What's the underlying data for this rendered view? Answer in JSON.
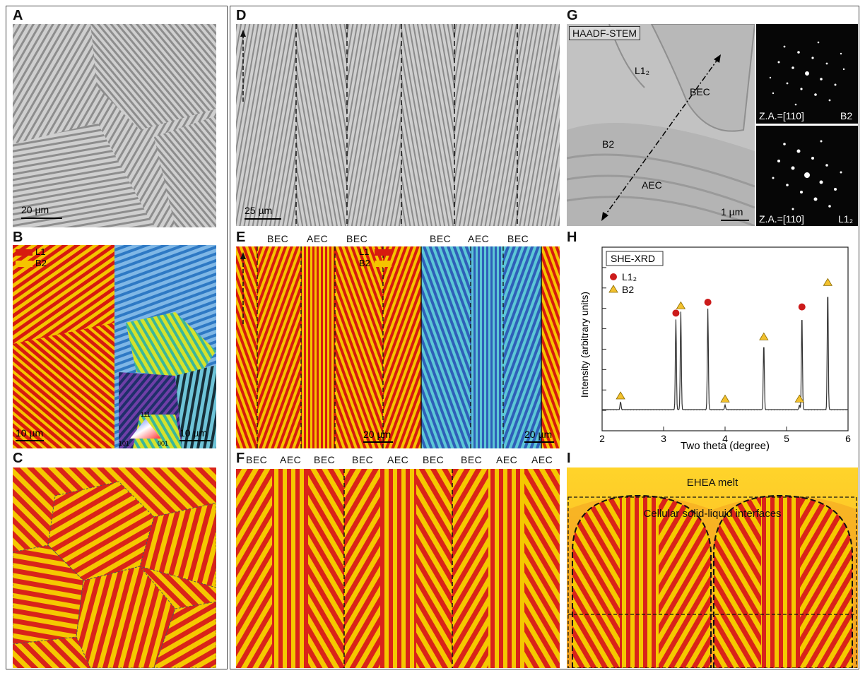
{
  "panels": {
    "A": {
      "label": "A",
      "scale": "20 µm"
    },
    "B": {
      "label": "B",
      "legend": [
        "L1",
        "B2"
      ],
      "scale_left": "10 µm",
      "scale_right": "10 µm",
      "ipf": [
        "111",
        "101",
        "001"
      ]
    },
    "C": {
      "label": "C"
    },
    "D": {
      "label": "D",
      "scale": "25 µm"
    },
    "E": {
      "label": "E",
      "top": [
        "BEC",
        "AEC",
        "BEC",
        "BEC",
        "AEC",
        "BEC"
      ],
      "legend": [
        "L1",
        "B2"
      ],
      "scale_left": "20 µm",
      "scale_right": "20 µm"
    },
    "F": {
      "label": "F",
      "top": [
        "BEC",
        "AEC",
        "BEC",
        "BEC",
        "AEC",
        "BEC",
        "BEC",
        "AEC",
        "AEC"
      ]
    },
    "G": {
      "label": "G",
      "mode": "HAADF-STEM",
      "regions": [
        "L1₂",
        "BEC",
        "B2",
        "AEC"
      ],
      "scale": "1 µm",
      "diffraction": [
        {
          "za": "Z.A.=[110]",
          "phase": "B2"
        },
        {
          "za": "Z.A.=[110]",
          "phase": "L1₂"
        }
      ]
    },
    "H": {
      "label": "H"
    },
    "I": {
      "label": "I",
      "melt": "EHEA melt",
      "interface": "Cellular solid-liquid interfaces"
    }
  },
  "chart_data": {
    "type": "line",
    "title": "SHE-XRD",
    "xlabel": "Two theta (degree)",
    "ylabel": "Intensity (arbitrary units)",
    "xlim": [
      2,
      6
    ],
    "xticks": [
      "2",
      "3",
      "4",
      "5",
      "6"
    ],
    "legend": [
      {
        "name": "L1₂",
        "marker": "circle",
        "color": "#cc1b1b"
      },
      {
        "name": "B2",
        "marker": "triangle",
        "color": "#f2c12e"
      }
    ],
    "peaks": [
      {
        "x": 2.3,
        "height": 0.05,
        "phase": "B2"
      },
      {
        "x": 3.2,
        "height": 0.58,
        "phase": "L1₂"
      },
      {
        "x": 3.28,
        "height": 0.63,
        "phase": "B2"
      },
      {
        "x": 3.72,
        "height": 0.65,
        "phase": "L1₂"
      },
      {
        "x": 4.0,
        "height": 0.03,
        "phase": "B2"
      },
      {
        "x": 4.63,
        "height": 0.43,
        "phase": "B2"
      },
      {
        "x": 5.21,
        "height": 0.03,
        "phase": "B2"
      },
      {
        "x": 5.25,
        "height": 0.62,
        "phase": "L1₂"
      },
      {
        "x": 5.67,
        "height": 0.78,
        "phase": "B2"
      }
    ]
  }
}
